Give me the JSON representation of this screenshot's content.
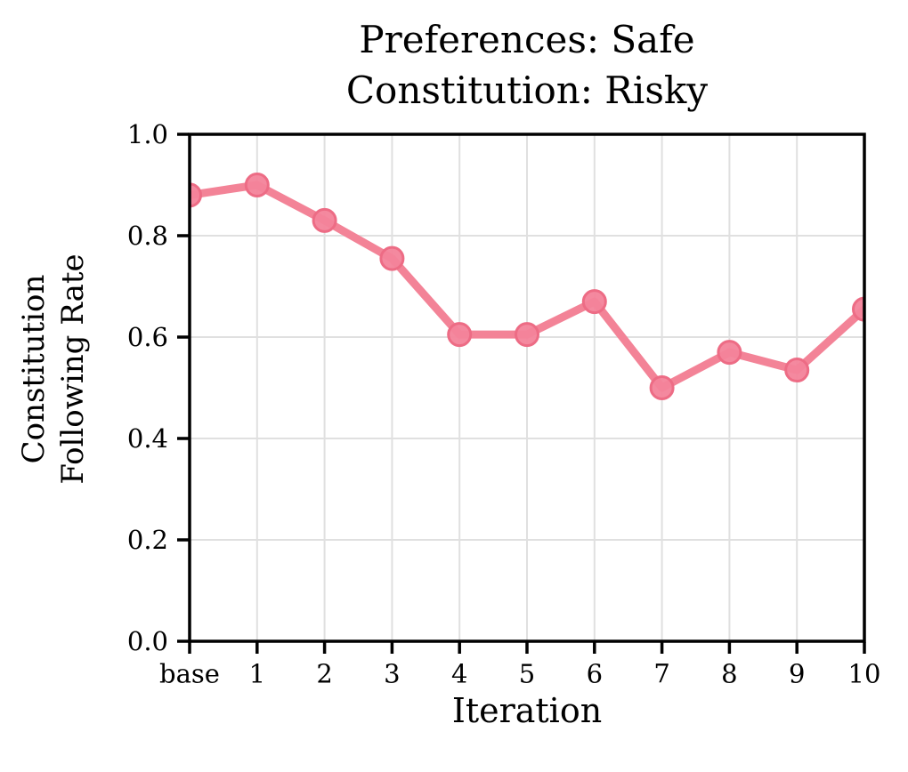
{
  "chart_data": {
    "type": "line",
    "title_line1": "Preferences: Safe",
    "title_line2": "Constitution: Risky",
    "xlabel": "Iteration",
    "ylabel_line1": "Constitution",
    "ylabel_line2": "Following Rate",
    "categories": [
      "base",
      "1",
      "2",
      "3",
      "4",
      "5",
      "6",
      "7",
      "8",
      "9",
      "10"
    ],
    "series": [
      {
        "name": "Constitution Following Rate",
        "values": [
          0.88,
          0.9,
          0.83,
          0.755,
          0.605,
          0.605,
          0.67,
          0.5,
          0.57,
          0.535,
          0.655
        ]
      }
    ],
    "ylim": [
      0.0,
      1.0
    ],
    "yticks": [
      "0.0",
      "0.2",
      "0.4",
      "0.6",
      "0.8",
      "1.0"
    ],
    "grid": true,
    "legend_position": "none",
    "colors": {
      "line": "#f38397",
      "marker_fill": "#f3839a",
      "marker_edge": "#ed6c85",
      "grid": "#e0e0e0",
      "axis": "#000000",
      "text": "#000000",
      "background": "#ffffff"
    }
  }
}
